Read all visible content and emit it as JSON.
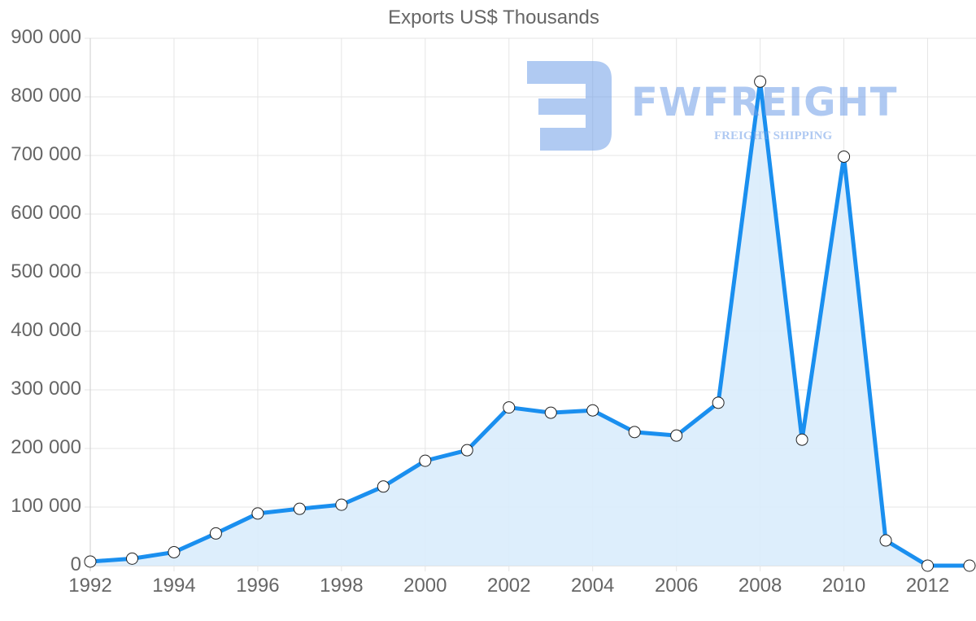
{
  "chart_data": {
    "type": "line",
    "title": "Exports US$ Thousands",
    "xlabel": "",
    "ylabel": "",
    "x": [
      1992,
      1993,
      1994,
      1995,
      1996,
      1997,
      1998,
      1999,
      2000,
      2001,
      2002,
      2003,
      2004,
      2005,
      2006,
      2007,
      2008,
      2009,
      2010,
      2011,
      2012,
      2013
    ],
    "series": [
      {
        "name": "Exports US$ Thousands",
        "values": [
          7000,
          12000,
          23000,
          55000,
          89000,
          97000,
          104000,
          135000,
          179000,
          197000,
          270000,
          261000,
          265000,
          228000,
          222000,
          278000,
          826000,
          215000,
          698000,
          43000,
          0,
          0
        ],
        "color": "#1a8fef",
        "fill": "#d9ecfc"
      }
    ],
    "ylim": [
      0,
      900000
    ],
    "yticks": [
      "0",
      "100 000",
      "200 000",
      "300 000",
      "400 000",
      "500 000",
      "600 000",
      "700 000",
      "800 000",
      "900 000"
    ],
    "xticks": [
      "1992",
      "1994",
      "1996",
      "1998",
      "2000",
      "2002",
      "2004",
      "2006",
      "2008",
      "2010",
      "2012"
    ],
    "grid": true,
    "legend": "none",
    "watermark": {
      "brand": "FWFREIGHT",
      "tagline": "FREIGHT SHIPPING"
    }
  }
}
